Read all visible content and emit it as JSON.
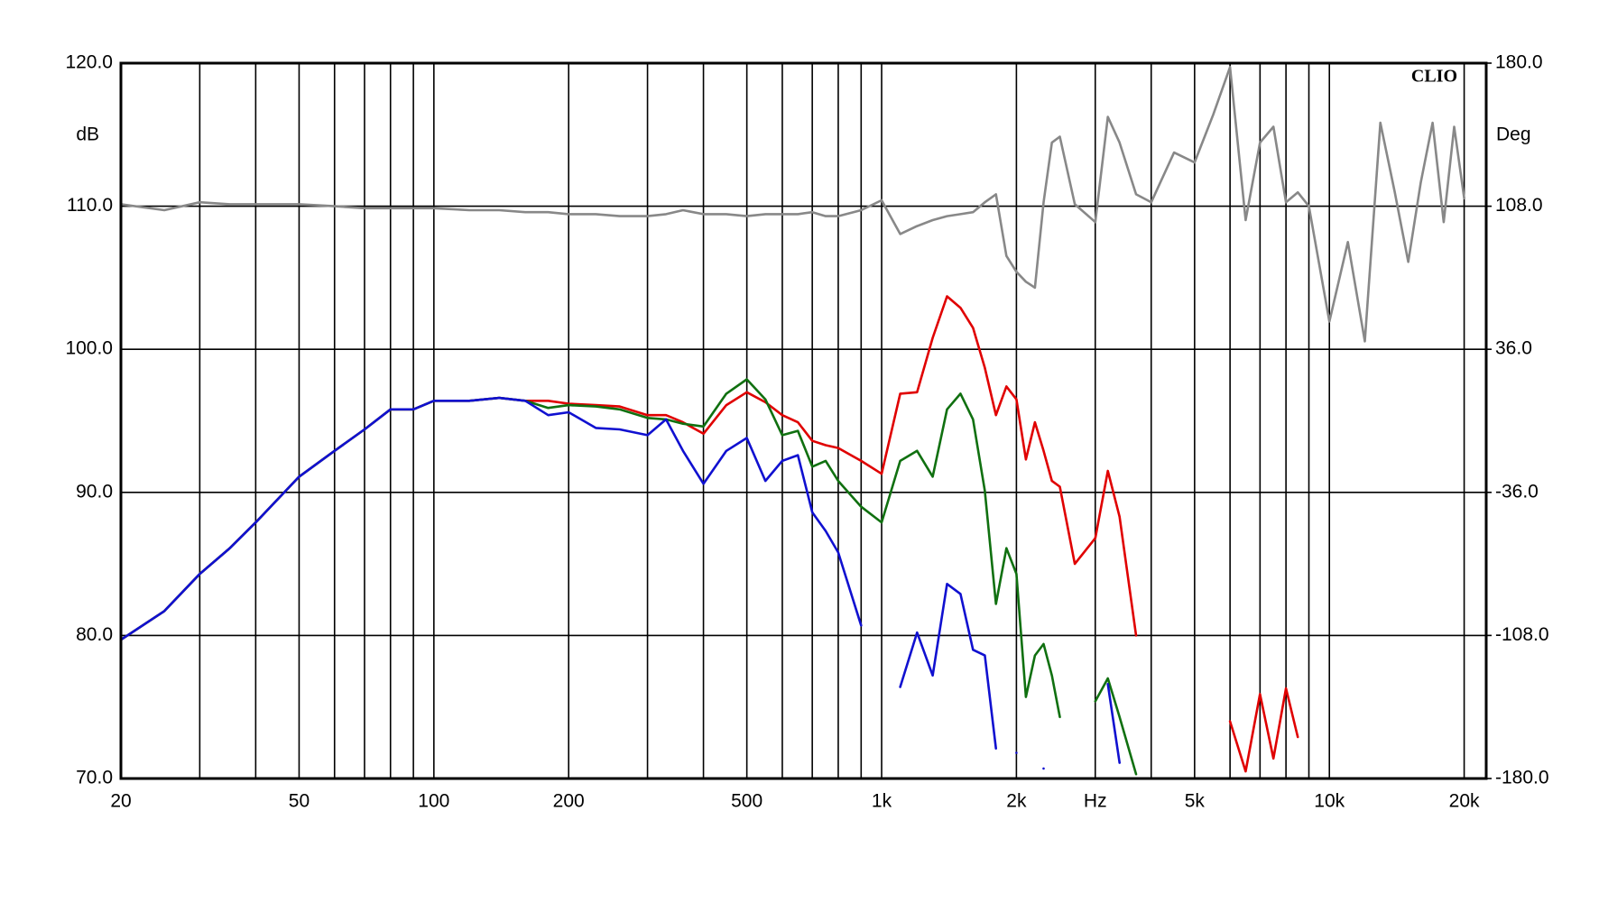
{
  "chart_data": {
    "type": "line",
    "brand": "CLIO",
    "y_label": "dB",
    "y2_label": "Deg",
    "x_label": "Hz",
    "x_label_at": 3000,
    "log_x": true,
    "grid": true,
    "xlim": [
      20,
      22400
    ],
    "ylim": [
      70,
      120
    ],
    "y2lim": [
      -180,
      180
    ],
    "xticks": [
      20,
      50,
      100,
      200,
      500,
      {
        "value": 1000,
        "label": "1k"
      },
      {
        "value": 2000,
        "label": "2k"
      },
      {
        "value": 5000,
        "label": "5k"
      },
      {
        "value": 10000,
        "label": "10k"
      },
      {
        "value": 20000,
        "label": "20k"
      }
    ],
    "xminor": [
      30,
      40,
      60,
      70,
      80,
      90,
      300,
      400,
      600,
      700,
      800,
      900,
      3000,
      4000,
      6000,
      7000,
      8000,
      9000
    ],
    "yticks": [
      {
        "value": 70,
        "label": "70.0"
      },
      {
        "value": 80,
        "label": "80.0"
      },
      {
        "value": 90,
        "label": "90.0"
      },
      {
        "value": 100,
        "label": "100.0"
      },
      {
        "value": 110,
        "label": "110.0"
      },
      {
        "value": 120,
        "label": "120.0"
      }
    ],
    "y2ticks": [
      {
        "value": -180,
        "label": "-180.0"
      },
      {
        "value": -108,
        "label": "-108.0"
      },
      {
        "value": -36,
        "label": "-36.0"
      },
      {
        "value": 36,
        "label": "36.0"
      },
      {
        "value": 108,
        "label": "108.0"
      },
      {
        "value": 180,
        "label": "180.0"
      }
    ],
    "x": [
      20,
      25,
      30,
      35,
      40,
      50,
      60,
      70,
      80,
      90,
      100,
      120,
      140,
      160,
      180,
      200,
      230,
      260,
      300,
      330,
      360,
      400,
      450,
      500,
      550,
      600,
      650,
      700,
      750,
      800,
      900,
      1000,
      1100,
      1200,
      1300,
      1400,
      1500,
      1600,
      1700,
      1800,
      1900,
      2000,
      2100,
      2200,
      2300,
      2400,
      2500,
      2700,
      3000,
      3200,
      3400,
      3700,
      4000,
      4500,
      5000,
      5500,
      6000,
      6500,
      7000,
      7500,
      8000,
      8500,
      9000,
      10000,
      11000,
      12000,
      13000,
      14000,
      15000,
      16000,
      17000,
      18000,
      19000,
      20000
    ],
    "series": [
      {
        "color": "#888888",
        "axis": "y2",
        "values": [
          109,
          106,
          110,
          109,
          109,
          109,
          108,
          107,
          107,
          107,
          107,
          106,
          106,
          105,
          105,
          104,
          104,
          103,
          103,
          104,
          106,
          104,
          104,
          103,
          104,
          104,
          104,
          105,
          103,
          103,
          106,
          111,
          94,
          98,
          101,
          103,
          104,
          105,
          110,
          114,
          83,
          75,
          70,
          67,
          110,
          140,
          143,
          109,
          100,
          153,
          140,
          114,
          110,
          135,
          130,
          154,
          178,
          101,
          140,
          148,
          110,
          115,
          108,
          50,
          90,
          40,
          150,
          115,
          80,
          120,
          150,
          100,
          148,
          112
        ]
      },
      {
        "color": "#e00000",
        "values": [
          79.7,
          81.7,
          84.3,
          86.1,
          87.9,
          91.1,
          92.9,
          94.4,
          95.8,
          95.8,
          96.4,
          96.4,
          96.6,
          96.4,
          96.4,
          96.2,
          96.1,
          96.0,
          95.4,
          95.4,
          94.9,
          94.1,
          96.1,
          97.0,
          96.3,
          95.4,
          94.9,
          93.6,
          93.3,
          93.1,
          92.2,
          91.3,
          96.9,
          97.0,
          100.8,
          103.7,
          102.9,
          101.5,
          98.7,
          95.4,
          97.4,
          96.5,
          92.3,
          94.9,
          92.9,
          90.8,
          90.4,
          85.0,
          86.8,
          91.5,
          88.3,
          80.0,
          null,
          null,
          null,
          null,
          74.0,
          70.5,
          75.9,
          71.4,
          76.3,
          72.9,
          null,
          null,
          null,
          null,
          null,
          null,
          null,
          null,
          null,
          null,
          null,
          null
        ]
      },
      {
        "color": "#107010",
        "values": [
          79.7,
          81.7,
          84.3,
          86.1,
          87.9,
          91.1,
          92.9,
          94.4,
          95.8,
          95.8,
          96.4,
          96.4,
          96.6,
          96.4,
          95.9,
          96.1,
          96.0,
          95.8,
          95.2,
          95.1,
          94.8,
          94.6,
          96.9,
          97.9,
          96.5,
          94.0,
          94.3,
          91.8,
          92.2,
          90.8,
          89.0,
          87.9,
          92.2,
          92.9,
          91.1,
          95.8,
          96.9,
          95.1,
          90.1,
          82.2,
          86.1,
          84.3,
          75.7,
          78.6,
          79.4,
          77.2,
          74.3,
          null,
          75.4,
          77.0,
          74.3,
          70.3,
          null,
          null,
          null,
          null,
          null,
          null,
          null,
          null,
          null,
          null,
          null,
          null,
          null,
          null,
          null,
          null,
          null,
          null,
          null,
          null,
          null,
          null
        ]
      },
      {
        "color": "#1010d0",
        "values": [
          79.7,
          81.7,
          84.3,
          86.1,
          87.9,
          91.1,
          92.9,
          94.4,
          95.8,
          95.8,
          96.4,
          96.4,
          96.6,
          96.4,
          95.4,
          95.6,
          94.5,
          94.4,
          94.0,
          95.1,
          92.9,
          90.6,
          92.9,
          93.8,
          90.8,
          92.2,
          92.6,
          88.6,
          87.3,
          85.8,
          80.7,
          null,
          76.4,
          80.2,
          77.2,
          83.6,
          82.9,
          79.0,
          78.6,
          72.1,
          null,
          71.8,
          null,
          null,
          70.7,
          null,
          null,
          null,
          null,
          76.6,
          71.1,
          null,
          null,
          null,
          null,
          null,
          null,
          null,
          null,
          null,
          null,
          null,
          null,
          null,
          null,
          null,
          null,
          null,
          null,
          null,
          null,
          null,
          null,
          null
        ]
      }
    ]
  }
}
